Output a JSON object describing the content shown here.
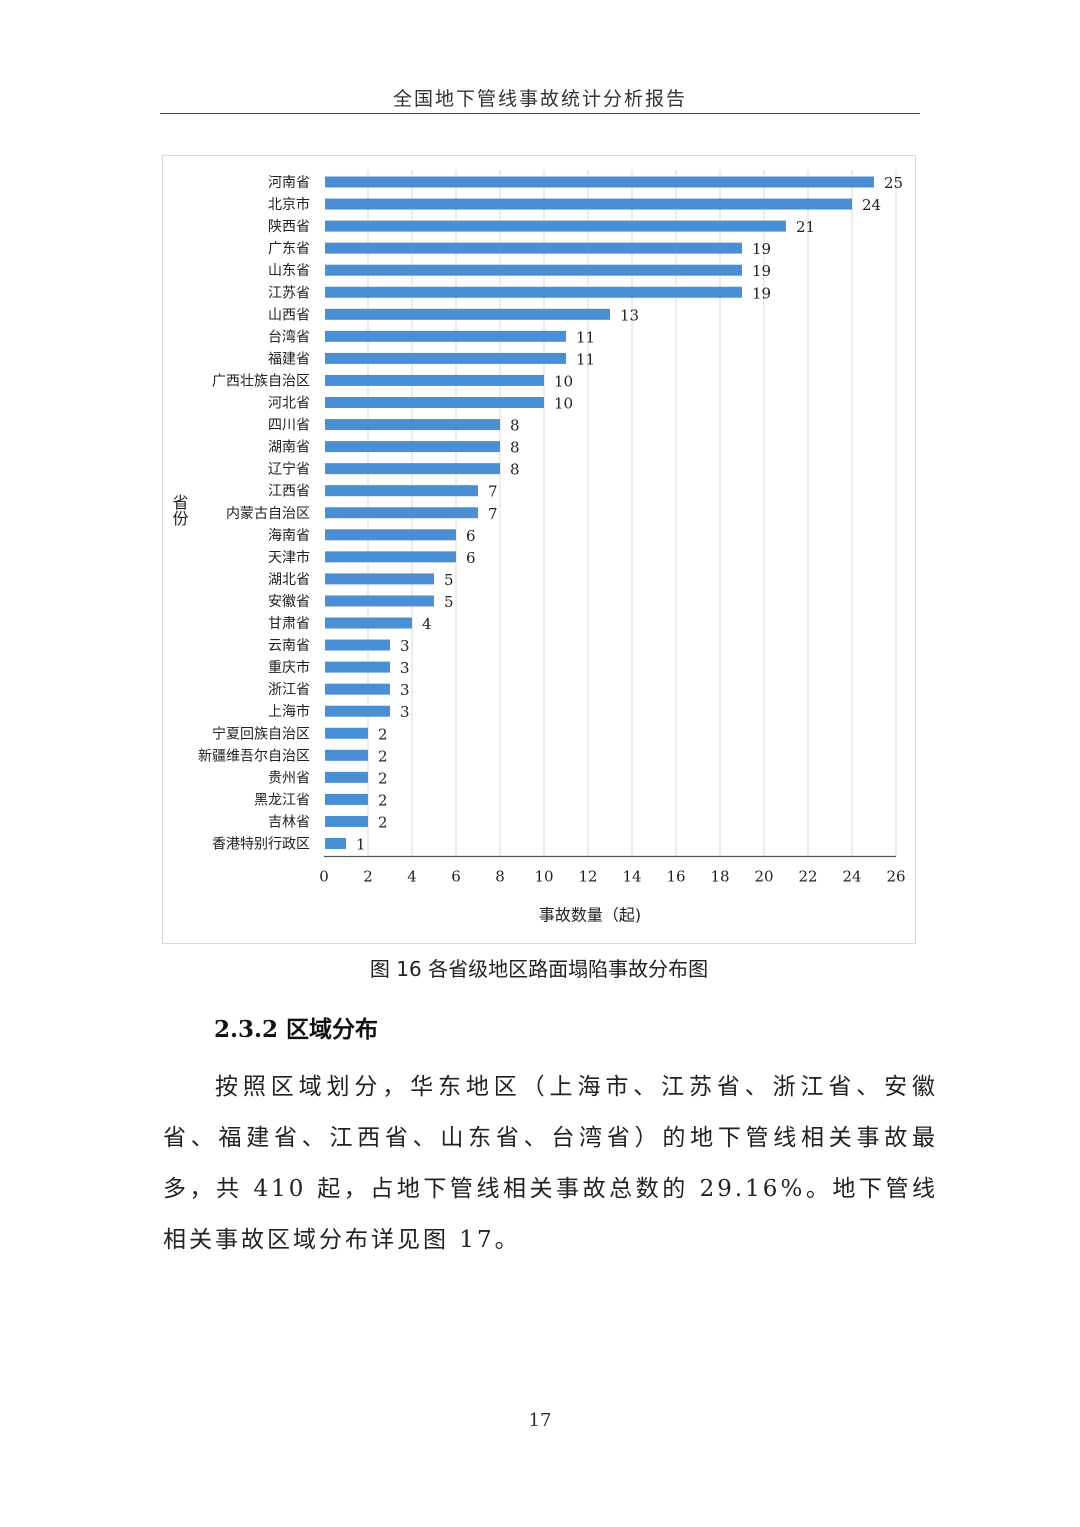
{
  "header": {
    "running_title": "全国地下管线事故统计分析报告"
  },
  "chart_data": {
    "type": "bar",
    "orientation": "horizontal",
    "categories": [
      "河南省",
      "北京市",
      "陕西省",
      "广东省",
      "山东省",
      "江苏省",
      "山西省",
      "台湾省",
      "福建省",
      "广西壮族自治区",
      "河北省",
      "四川省",
      "湖南省",
      "辽宁省",
      "江西省",
      "内蒙古自治区",
      "海南省",
      "天津市",
      "湖北省",
      "安徽省",
      "甘肃省",
      "云南省",
      "重庆市",
      "浙江省",
      "上海市",
      "宁夏回族自治区",
      "新疆维吾尔自治区",
      "贵州省",
      "黑龙江省",
      "吉林省",
      "香港特别行政区"
    ],
    "values": [
      25,
      24,
      21,
      19,
      19,
      19,
      13,
      11,
      11,
      10,
      10,
      8,
      8,
      8,
      7,
      7,
      6,
      6,
      5,
      5,
      4,
      3,
      3,
      3,
      3,
      2,
      2,
      2,
      2,
      2,
      1
    ],
    "xlabel": "事故数量（起)",
    "ylabel": "省份",
    "xlim": [
      0,
      26
    ],
    "xticks": [
      0,
      2,
      4,
      6,
      8,
      10,
      12,
      14,
      16,
      18,
      20,
      22,
      24,
      26
    ],
    "bar_color": "#4a8fd3",
    "grid": true,
    "data_labels": true
  },
  "figure_caption": "图 16 各省级地区路面塌陷事故分布图",
  "section": {
    "heading": "2.3.2 区域分布",
    "paragraph": "按照区域划分，华东地区（上海市、江苏省、浙江省、安徽省、福建省、江西省、山东省、台湾省）的地下管线相关事故最多，共 410 起，占地下管线相关事故总数的 29.16%。地下管线相关事故区域分布详见图 17。"
  },
  "footer": {
    "page_number": "17"
  }
}
